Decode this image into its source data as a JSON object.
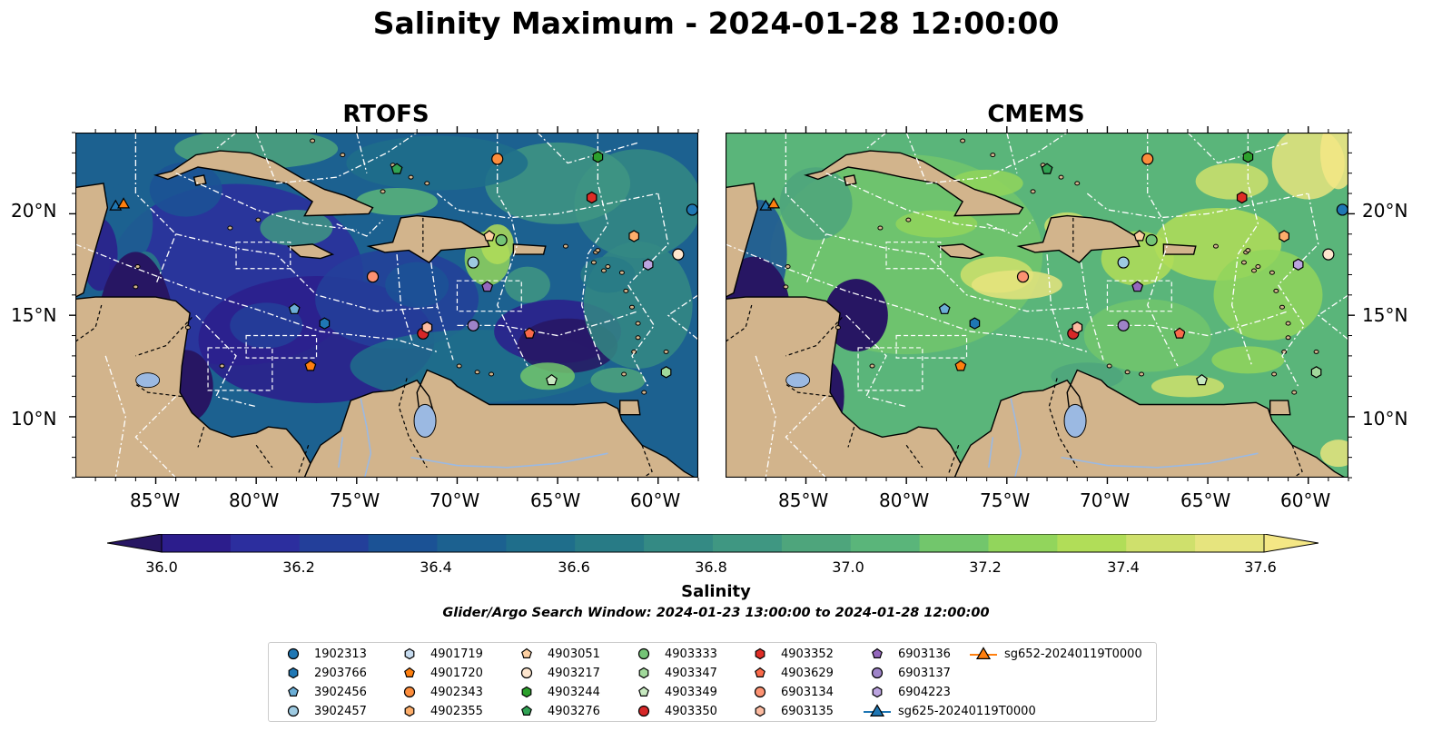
{
  "title": "Salinity Maximum - 2024-01-28 12:00:00",
  "panels": [
    {
      "name": "RTOFS"
    },
    {
      "name": "CMEMS"
    }
  ],
  "lat_ticks": [
    "20°N",
    "15°N",
    "10°N"
  ],
  "lon_ticks": [
    "85°W",
    "80°W",
    "75°W",
    "70°W",
    "65°W",
    "60°W"
  ],
  "colorbar": {
    "label": "Salinity",
    "ticks": [
      "36.0",
      "36.2",
      "36.4",
      "36.6",
      "36.8",
      "37.0",
      "37.2",
      "37.4",
      "37.6"
    ],
    "range": [
      35.9,
      37.7
    ],
    "step": 0.1,
    "extend": "both",
    "colors": [
      "#271663",
      "#2c1d8c",
      "#2c2e9e",
      "#233f9a",
      "#1b5295",
      "#1c6190",
      "#1f6e8b",
      "#287b86",
      "#348a84",
      "#3f9782",
      "#4ea57c",
      "#5ab57a",
      "#72c66c",
      "#92d55c",
      "#b1dd58",
      "#cfe06c",
      "#e6e47e",
      "#f4e785"
    ]
  },
  "search_window": "Glider/Argo Search Window: 2024-01-23 13:00:00 to 2024-01-28 12:00:00",
  "map_colors": {
    "land": "#d2b48c",
    "lake": "#9bb9e2",
    "river": "#9bb9e2",
    "deep_ocean": "#271663"
  },
  "legend": [
    {
      "label": "1902313",
      "marker": "circle",
      "color": "#1f77b4"
    },
    {
      "label": "2903766",
      "marker": "hexagon",
      "color": "#1f77b4"
    },
    {
      "label": "3902456",
      "marker": "pentagon",
      "color": "#6baed6"
    },
    {
      "label": "3902457",
      "marker": "circle",
      "color": "#9ecae1"
    },
    {
      "label": "4901719",
      "marker": "hexagon",
      "color": "#c6dbef"
    },
    {
      "label": "4901720",
      "marker": "pentagon",
      "color": "#ff7f0e"
    },
    {
      "label": "4902343",
      "marker": "circle",
      "color": "#fd8d3c"
    },
    {
      "label": "4902355",
      "marker": "hexagon",
      "color": "#fdae6b"
    },
    {
      "label": "4903051",
      "marker": "pentagon",
      "color": "#fdd0a2"
    },
    {
      "label": "4903217",
      "marker": "circle",
      "color": "#fee6ce"
    },
    {
      "label": "4903244",
      "marker": "hexagon",
      "color": "#2ca02c"
    },
    {
      "label": "4903276",
      "marker": "pentagon",
      "color": "#31a354"
    },
    {
      "label": "4903333",
      "marker": "circle",
      "color": "#74c476"
    },
    {
      "label": "4903347",
      "marker": "hexagon",
      "color": "#a1d99b"
    },
    {
      "label": "4903349",
      "marker": "pentagon",
      "color": "#c7e9c0"
    },
    {
      "label": "4903350",
      "marker": "circle",
      "color": "#d62728"
    },
    {
      "label": "4903352",
      "marker": "hexagon",
      "color": "#de2d26"
    },
    {
      "label": "4903629",
      "marker": "pentagon",
      "color": "#fb6a4a"
    },
    {
      "label": "6903134",
      "marker": "circle",
      "color": "#fc9272"
    },
    {
      "label": "6903135",
      "marker": "hexagon",
      "color": "#fcbba1"
    },
    {
      "label": "6903136",
      "marker": "pentagon",
      "color": "#9467bd"
    },
    {
      "label": "6903137",
      "marker": "circle",
      "color": "#9e83c8"
    },
    {
      "label": "6904223",
      "marker": "hexagon",
      "color": "#bca4e0"
    },
    {
      "label": "sg625-20240119T0000",
      "marker": "triangle-line",
      "color": "#1f77b4"
    },
    {
      "label": "sg652-20240119T0000",
      "marker": "triangle-line",
      "color": "#ff7f0e"
    }
  ],
  "platform_positions": [
    {
      "id": "1902313",
      "lon": -58.3,
      "lat": 20.2
    },
    {
      "id": "2903766",
      "lon": -76.6,
      "lat": 14.6
    },
    {
      "id": "3902456",
      "lon": -78.1,
      "lat": 15.3
    },
    {
      "id": "3902457",
      "lon": -69.2,
      "lat": 17.6
    },
    {
      "id": "4901719",
      "lon": -71.5,
      "lat": 14.4
    },
    {
      "id": "4901720",
      "lon": -77.3,
      "lat": 12.5
    },
    {
      "id": "4902343",
      "lon": -68.0,
      "lat": 22.7
    },
    {
      "id": "4902355",
      "lon": -61.2,
      "lat": 18.9
    },
    {
      "id": "4903051",
      "lon": -68.4,
      "lat": 18.9
    },
    {
      "id": "4903217",
      "lon": -59.0,
      "lat": 18.0
    },
    {
      "id": "4903244",
      "lon": -63.0,
      "lat": 22.8
    },
    {
      "id": "4903276",
      "lon": -73.0,
      "lat": 22.2
    },
    {
      "id": "4903333",
      "lon": -67.8,
      "lat": 18.7
    },
    {
      "id": "4903347",
      "lon": -59.6,
      "lat": 12.2
    },
    {
      "id": "4903349",
      "lon": -65.3,
      "lat": 11.8
    },
    {
      "id": "4903350",
      "lon": -71.7,
      "lat": 14.1
    },
    {
      "id": "4903352",
      "lon": -63.3,
      "lat": 20.8
    },
    {
      "id": "4903629",
      "lon": -66.4,
      "lat": 14.1
    },
    {
      "id": "6903134",
      "lon": -74.2,
      "lat": 16.9
    },
    {
      "id": "6903135",
      "lon": -71.5,
      "lat": 14.4
    },
    {
      "id": "6903136",
      "lon": -68.5,
      "lat": 16.4
    },
    {
      "id": "6903137",
      "lon": -69.2,
      "lat": 14.5
    },
    {
      "id": "6904223",
      "lon": -60.5,
      "lat": 17.5
    },
    {
      "id": "sg625-20240119T0000",
      "lon": -87.0,
      "lat": 20.4
    },
    {
      "id": "sg652-20240119T0000",
      "lon": -86.6,
      "lat": 20.5
    }
  ],
  "map_extent": {
    "lon": [
      -89,
      -58
    ],
    "lat": [
      7,
      24
    ]
  }
}
